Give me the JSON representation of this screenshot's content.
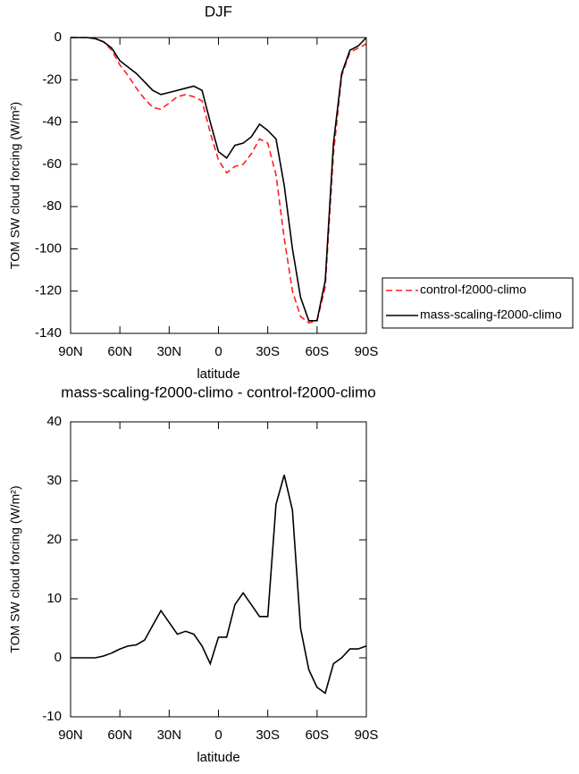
{
  "chart_data": [
    {
      "type": "line",
      "title": "DJF",
      "xlabel": "latitude",
      "ylabel": "TOM SW cloud forcing (W/m²)",
      "x": [
        90,
        85,
        80,
        75,
        70,
        65,
        60,
        55,
        50,
        45,
        40,
        35,
        30,
        25,
        20,
        15,
        10,
        5,
        0,
        -5,
        -10,
        -15,
        -20,
        -25,
        -30,
        -35,
        -40,
        -45,
        -50,
        -55,
        -60,
        -65,
        -70,
        -75,
        -80,
        -85,
        -90
      ],
      "series": [
        {
          "name": "control-f2000-climo",
          "color": "#ff2020",
          "dash": true,
          "values": [
            0,
            0,
            0,
            -0.5,
            -2,
            -6,
            -13,
            -18,
            -24,
            -29,
            -33,
            -34,
            -31,
            -28,
            -27,
            -28,
            -30,
            -45,
            -58,
            -64,
            -61,
            -60,
            -55,
            -48,
            -50,
            -65,
            -95,
            -120,
            -132,
            -135,
            -134,
            -118,
            -55,
            -18,
            -7,
            -5,
            -3
          ]
        },
        {
          "name": "mass-scaling-f2000-climo",
          "color": "#000000",
          "dash": false,
          "values": [
            0,
            0,
            0,
            -0.5,
            -2,
            -5,
            -11,
            -14,
            -17,
            -21,
            -25,
            -27,
            -26,
            -25,
            -24,
            -23,
            -25,
            -40,
            -54,
            -57,
            -51,
            -50,
            -47,
            -41,
            -44,
            -48,
            -70,
            -100,
            -123,
            -134,
            -134,
            -115,
            -50,
            -17,
            -6,
            -4,
            0
          ]
        }
      ],
      "xlim": [
        90,
        -90
      ],
      "xticks": [
        {
          "value": 90,
          "label": "90N"
        },
        {
          "value": 60,
          "label": "60N"
        },
        {
          "value": 30,
          "label": "30N"
        },
        0,
        {
          "value": -30,
          "label": "30S"
        },
        {
          "value": -60,
          "label": "60S"
        },
        {
          "value": -90,
          "label": "90S"
        }
      ],
      "ylim": [
        -140,
        0
      ],
      "yticks": [
        0,
        -20,
        -40,
        -60,
        -80,
        -100,
        -120,
        -140
      ],
      "legend": "right"
    },
    {
      "type": "line",
      "title": "mass-scaling-f2000-climo - control-f2000-climo",
      "xlabel": "latitude",
      "ylabel": "TOM SW cloud forcing (W/m²)",
      "x": [
        90,
        85,
        80,
        75,
        70,
        65,
        60,
        55,
        50,
        45,
        40,
        35,
        30,
        25,
        20,
        15,
        10,
        5,
        0,
        -5,
        -10,
        -15,
        -20,
        -25,
        -30,
        -35,
        -40,
        -45,
        -50,
        -55,
        -60,
        -65,
        -70,
        -75,
        -80,
        -85,
        -90
      ],
      "series": [
        {
          "color": "#000000",
          "dash": false,
          "values": [
            0,
            0,
            0,
            0,
            0.3,
            0.8,
            1.5,
            2,
            2.2,
            3,
            5.5,
            8,
            6,
            4,
            4.5,
            4,
            2,
            -1,
            3.5,
            3.5,
            9,
            11,
            9,
            7,
            7,
            26,
            31,
            25,
            5,
            -2,
            -5,
            -6,
            -1,
            0,
            1.5,
            1.5,
            2
          ]
        }
      ],
      "xlim": [
        90,
        -90
      ],
      "xticks": [
        {
          "value": 90,
          "label": "90N"
        },
        {
          "value": 60,
          "label": "60N"
        },
        {
          "value": 30,
          "label": "30N"
        },
        0,
        {
          "value": -30,
          "label": "30S"
        },
        {
          "value": -60,
          "label": "60S"
        },
        {
          "value": -90,
          "label": "90S"
        }
      ],
      "ylim": [
        -10,
        40
      ],
      "yticks": [
        -10,
        0,
        10,
        20,
        30,
        40
      ]
    }
  ]
}
